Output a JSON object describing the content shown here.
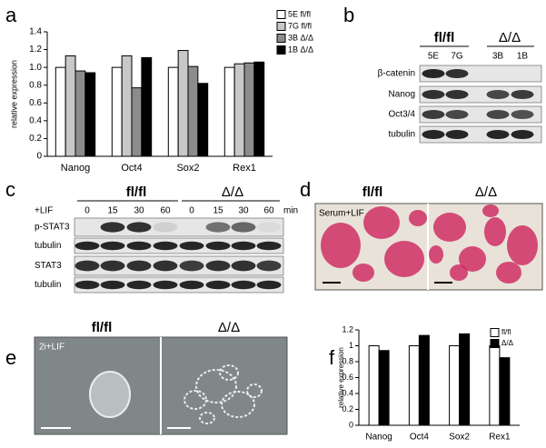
{
  "panel_labels": [
    "a",
    "b",
    "c",
    "d",
    "e",
    "f"
  ],
  "chart_data": [
    {
      "type": "bar",
      "ylabel": "relative expression",
      "categories": [
        "Nanog",
        "Oct4",
        "Sox2",
        "Rex1"
      ],
      "series": [
        {
          "name": "5E fl/fl",
          "color": "#ffffff",
          "values": [
            1.0,
            1.0,
            1.0,
            1.0
          ]
        },
        {
          "name": "7G fl/fl",
          "color": "#c8c8c8",
          "values": [
            1.13,
            1.13,
            1.19,
            1.04
          ]
        },
        {
          "name": "3B Δ/Δ",
          "color": "#8c8c8c",
          "values": [
            0.96,
            0.77,
            1.01,
            1.05
          ]
        },
        {
          "name": "1B Δ/Δ",
          "color": "#000000",
          "values": [
            0.94,
            1.11,
            0.82,
            1.06
          ]
        }
      ],
      "ylim": [
        0,
        1.4
      ],
      "yticks": [
        0,
        0.2,
        0.4,
        0.6,
        0.8,
        {
          "value": 1,
          "label": "1.0"
        },
        1.2,
        1.4
      ]
    },
    {
      "type": "bar",
      "ylabel": "relative expression",
      "categories": [
        "Nanog",
        "Oct4",
        "Sox2",
        "Rex1"
      ],
      "series": [
        {
          "name": "fl/fl",
          "color": "#ffffff",
          "values": [
            1.0,
            1.0,
            1.0,
            1.0
          ]
        },
        {
          "name": "Δ/Δ",
          "color": "#000000",
          "values": [
            0.94,
            1.13,
            1.15,
            0.85
          ]
        }
      ],
      "ylim": [
        0,
        1.2
      ],
      "yticks": [
        0,
        0.2,
        0.4,
        0.6,
        0.8,
        1,
        1.2
      ]
    }
  ],
  "blot_b": {
    "groups": [
      "fl/fl",
      "Δ/Δ"
    ],
    "lanes": [
      "5E",
      "7G",
      "3B",
      "1B"
    ],
    "rows": [
      "β-catenin",
      "Nanog",
      "Oct3/4",
      "tubulin"
    ]
  },
  "blot_c": {
    "treatment": "+LIF",
    "groups": [
      "fl/fl",
      "Δ/Δ"
    ],
    "lanes": [
      0,
      15,
      30,
      60,
      0,
      15,
      30,
      60
    ],
    "unit": "min",
    "rows": [
      "p-STAT3",
      "tubulin",
      "STAT3",
      "tubulin"
    ]
  },
  "image_d": {
    "groups": [
      "fl/fl",
      "Δ/Δ"
    ],
    "condition": "Serum+LIF"
  },
  "image_e": {
    "groups": [
      "fl/fl",
      "Δ/Δ"
    ],
    "condition": "2i+LIF"
  }
}
